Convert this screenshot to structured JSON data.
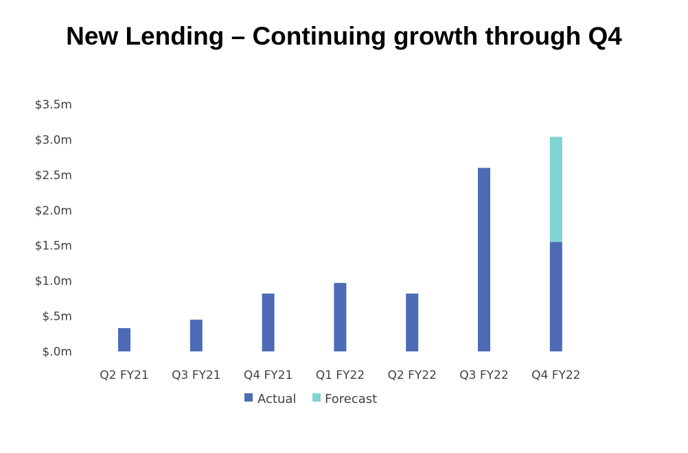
{
  "title": "New Lending – Continuing growth through Q4",
  "colors": {
    "actual": "#4d6bb4",
    "forecast": "#7fd3d3"
  },
  "chart_data": {
    "type": "bar",
    "stacked": true,
    "categories": [
      "Q2 FY21",
      "Q3 FY21",
      "Q4 FY21",
      "Q1 FY22",
      "Q2 FY22",
      "Q3 FY22",
      "Q4 FY22"
    ],
    "series": [
      {
        "name": "Actual",
        "values": [
          0.33,
          0.45,
          0.82,
          0.97,
          0.82,
          2.6,
          1.55
        ]
      },
      {
        "name": "Forecast",
        "values": [
          0,
          0,
          0,
          0,
          0,
          0,
          1.49
        ]
      }
    ],
    "y_ticks": [
      "$.0m",
      "$.5m",
      "$1.0m",
      "$1.5m",
      "$2.0m",
      "$2.5m",
      "$3.0m",
      "$3.5m"
    ],
    "ylim": [
      0,
      3.5
    ],
    "legend_position": "bottom",
    "grid": false
  }
}
